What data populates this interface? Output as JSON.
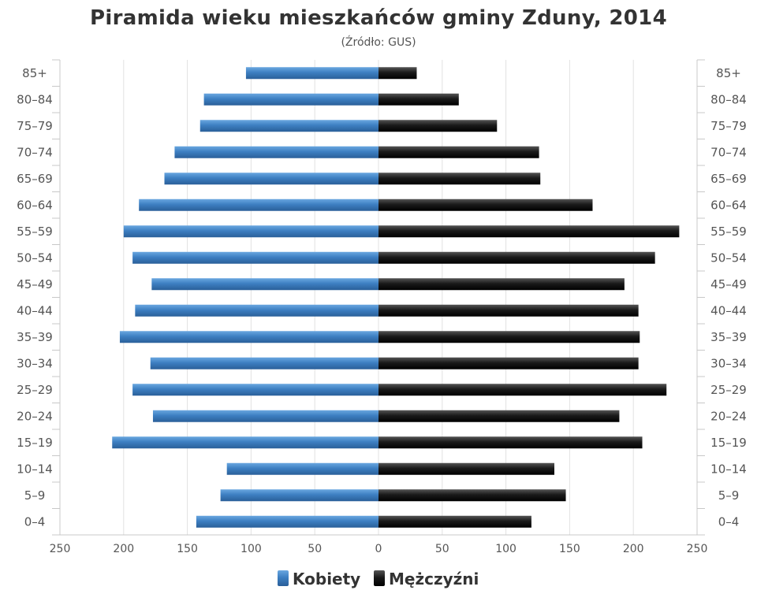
{
  "chart_data": {
    "type": "bar",
    "orientation": "horizontal-pyramid",
    "title": "Piramida wieku mieszkańców gminy Zduny, 2014",
    "subtitle": "(Źródło: GUS)",
    "categories": [
      "85+",
      "80–84",
      "75–79",
      "70–74",
      "65–69",
      "60–64",
      "55–59",
      "50–54",
      "45–49",
      "40–44",
      "35–39",
      "30–34",
      "25–29",
      "20–24",
      "15–19",
      "10–14",
      "5–9",
      "0–4"
    ],
    "series": [
      {
        "name": "Kobiety",
        "color": "#4a89c8",
        "values": [
          104,
          137,
          140,
          160,
          168,
          188,
          200,
          193,
          178,
          191,
          203,
          179,
          193,
          177,
          209,
          119,
          124,
          143
        ]
      },
      {
        "name": "Mężczyźni",
        "color": "#1c1c1c",
        "values": [
          30,
          63,
          93,
          126,
          127,
          168,
          236,
          217,
          193,
          204,
          205,
          204,
          226,
          189,
          207,
          138,
          147,
          120
        ]
      }
    ],
    "xlim": [
      -250,
      250
    ],
    "x_tick_labels": [
      "250",
      "200",
      "150",
      "100",
      "50",
      "0",
      "50",
      "100",
      "150",
      "200",
      "250"
    ],
    "grid": "vertical",
    "legend_position": "bottom-center"
  }
}
